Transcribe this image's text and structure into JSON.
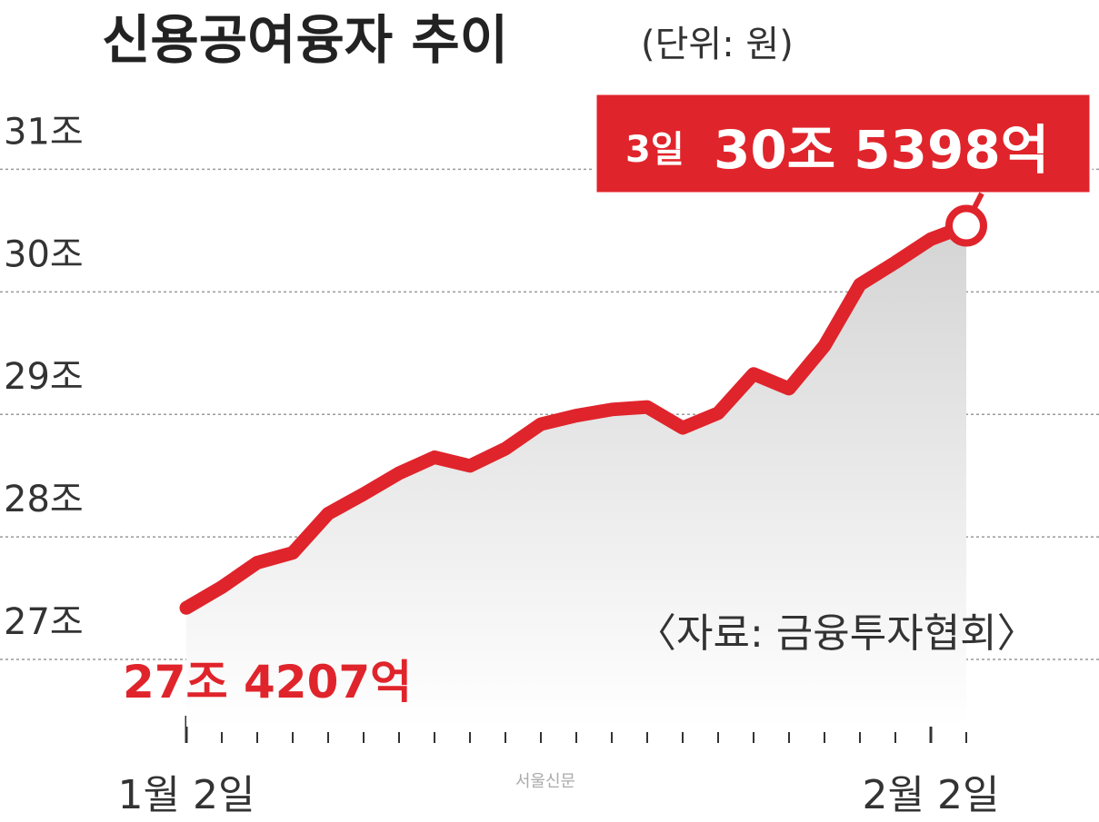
{
  "chart_data": {
    "type": "line",
    "title": "신용공여융자 추이",
    "subtitle": "(단위: 원)",
    "source": "〈자료: 금융투자협회〉",
    "watermark": "서울신문",
    "end_annotation": "3일",
    "categories": [
      "1월 2일",
      null,
      null,
      null,
      null,
      null,
      null,
      null,
      null,
      null,
      null,
      null,
      null,
      null,
      null,
      null,
      null,
      null,
      null,
      null,
      null,
      "2월 2일",
      null
    ],
    "values": [
      27.4207,
      27.59,
      27.79,
      27.87,
      28.19,
      28.35,
      28.52,
      28.65,
      28.58,
      28.72,
      28.92,
      28.99,
      29.04,
      29.06,
      28.89,
      29.01,
      29.33,
      29.21,
      29.56,
      30.06,
      30.24,
      30.43,
      30.5398
    ],
    "value_labels": [
      "27조 4207억",
      null,
      null,
      null,
      null,
      null,
      null,
      null,
      null,
      null,
      null,
      null,
      null,
      null,
      null,
      null,
      null,
      null,
      null,
      null,
      null,
      null,
      "30조 5398억"
    ],
    "color": "#e0242b",
    "ylim": [
      26.6,
      31.9
    ],
    "yticks": [
      {
        "value": 27,
        "label": "27조"
      },
      {
        "value": 28,
        "label": "28조"
      },
      {
        "value": 29,
        "label": "29조"
      },
      {
        "value": 30,
        "label": "30조"
      },
      {
        "value": 31,
        "label": "31조"
      }
    ],
    "grid": true
  }
}
